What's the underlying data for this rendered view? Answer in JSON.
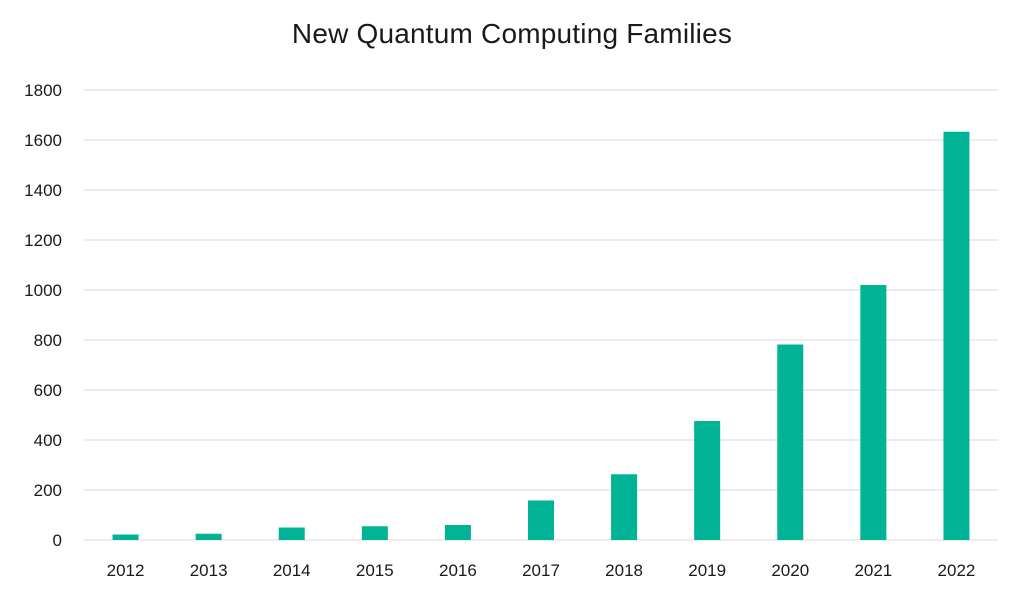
{
  "chart_data": {
    "type": "bar",
    "title": "New Quantum Computing Families",
    "xlabel": "",
    "ylabel": "",
    "categories": [
      "2012",
      "2013",
      "2014",
      "2015",
      "2016",
      "2017",
      "2018",
      "2019",
      "2020",
      "2021",
      "2022"
    ],
    "values": [
      22,
      25,
      50,
      55,
      60,
      158,
      263,
      476,
      782,
      1020,
      1633
    ],
    "ylim": [
      0,
      1800
    ],
    "yticks": [
      0,
      200,
      400,
      600,
      800,
      1000,
      1200,
      1400,
      1600,
      1800
    ],
    "grid": true,
    "legend": "none",
    "bar_color": "#00b394"
  }
}
